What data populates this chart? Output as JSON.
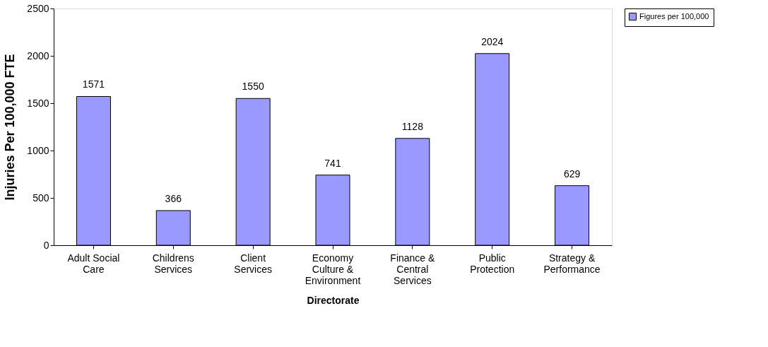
{
  "chart_data": {
    "type": "bar",
    "xlabel": "Directorate",
    "ylabel": "Injuries Per 100,000 FTE",
    "categories": [
      "Adult Social Care",
      "Childrens Services",
      "Client Services",
      "Economy Culture & Environment",
      "Finance & Central Services",
      "Public Protection",
      "Strategy & Performance"
    ],
    "series": [
      {
        "name": "Figures per 100,000",
        "color": "#9999ff",
        "values": [
          1571,
          366,
          1550,
          741,
          1128,
          2024,
          629
        ]
      }
    ],
    "ylim": [
      0,
      2500
    ],
    "yticks": [
      0,
      500,
      1000,
      1500,
      2000,
      2500
    ],
    "grid": false,
    "legend": "right",
    "data_labels": true
  }
}
